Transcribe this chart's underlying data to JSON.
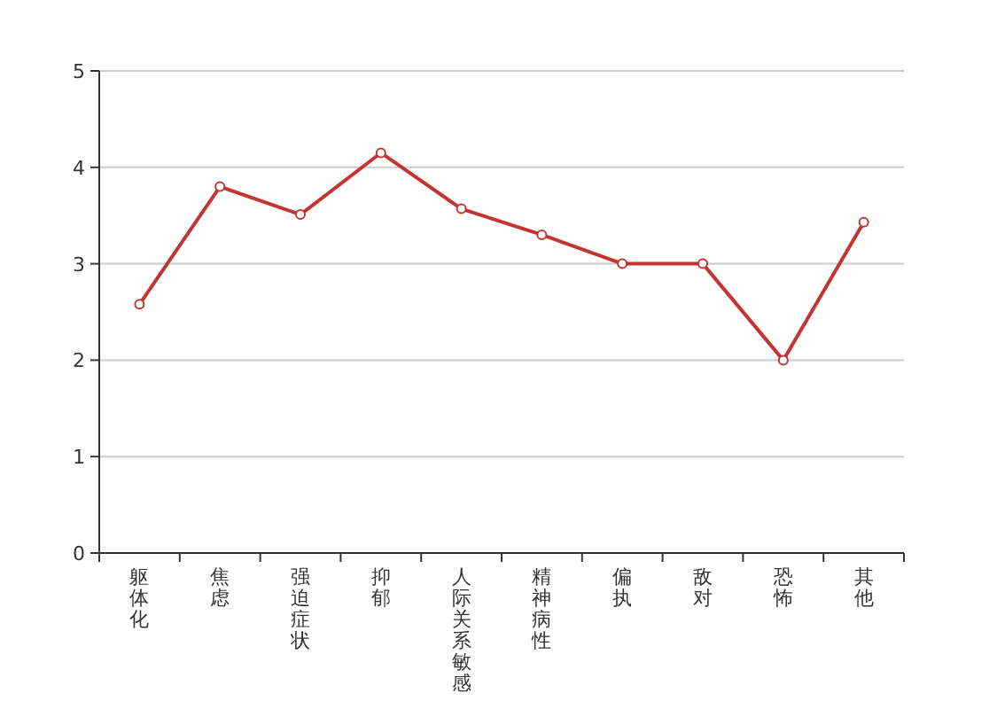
{
  "chart_data": {
    "type": "line",
    "categories": [
      "躯体化",
      "焦虑",
      "强迫症状",
      "抑郁",
      "人际关系敏感",
      "精神病性",
      "偏执",
      "敌对",
      "恐怖",
      "其他"
    ],
    "values": [
      2.58,
      3.8,
      3.51,
      4.15,
      3.57,
      3.3,
      3.0,
      3.0,
      2.0,
      3.43
    ],
    "color": "#c23531",
    "ylim": [
      0,
      5
    ],
    "yticks": [
      0,
      1,
      2,
      3,
      4,
      5
    ],
    "grid": "y",
    "marker": "circle"
  }
}
